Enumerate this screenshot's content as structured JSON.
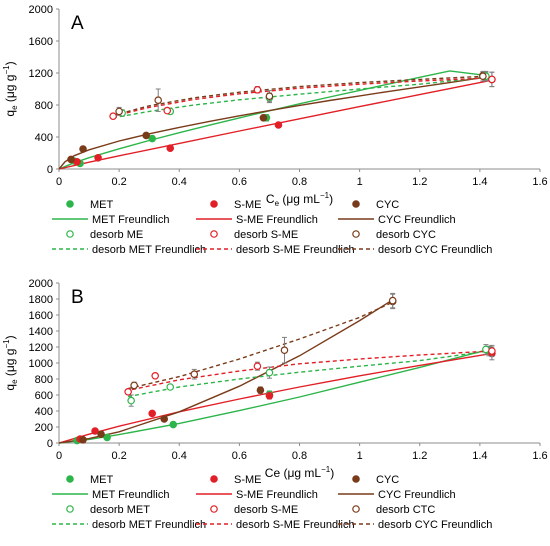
{
  "chart_data": [
    {
      "type": "scatter",
      "panel_label": "A",
      "xlabel": "C",
      "xlabel_sub": "e",
      "xlabel_units": " (μg mL",
      "xlabel_sup": "−1",
      "xlabel_end": ")",
      "ylabel": "q",
      "ylabel_sub": "e",
      "ylabel_units": " (μg g",
      "ylabel_sup": "−1",
      "ylabel_end": ")",
      "xlim": [
        0,
        1.6
      ],
      "ylim": [
        0,
        2000
      ],
      "xticks": [
        "0",
        "0.2",
        "0.4",
        "0.6",
        "0.8",
        "1",
        "1.2",
        "1.4",
        "1.6"
      ],
      "yticks": [
        "0",
        "400",
        "800",
        "1200",
        "1600",
        "2000"
      ],
      "grid": false,
      "legend_position": "below",
      "series": [
        {
          "name": "MET",
          "kind": "points",
          "color": "#2db54a",
          "filled": true,
          "x": [
            0.05,
            0.07,
            0.31,
            0.69,
            1.42
          ],
          "y": [
            100,
            70,
            380,
            640,
            1160
          ],
          "err": [
            0,
            0,
            30,
            40,
            60
          ]
        },
        {
          "name": "S-ME",
          "kind": "points",
          "color": "#e21f26",
          "filled": true,
          "x": [
            0.06,
            0.13,
            0.37,
            0.73,
            1.44
          ],
          "y": [
            90,
            140,
            260,
            550,
            1120
          ],
          "err": [
            0,
            0,
            0,
            0,
            90
          ]
        },
        {
          "name": "CYC",
          "kind": "points",
          "color": "#7a3b1a",
          "filled": true,
          "x": [
            0.04,
            0.08,
            0.29,
            0.68,
            1.41
          ],
          "y": [
            120,
            250,
            420,
            640,
            1170
          ],
          "err": [
            0,
            0,
            0,
            0,
            0
          ]
        },
        {
          "name": "MET Freundlich",
          "kind": "line",
          "color": "#2db54a",
          "dashed": false,
          "x": [
            0,
            0.05,
            0.1,
            0.2,
            0.3,
            0.4,
            0.5,
            0.6,
            0.7,
            0.8,
            0.9,
            1.0,
            1.1,
            1.2,
            1.3,
            1.43
          ],
          "y": [
            0,
            78,
            141,
            252,
            356,
            454,
            548,
            639,
            728,
            815,
            900,
            983,
            1065,
            1146,
            1226,
            1165
          ]
        },
        {
          "name": "S-ME Freundlich",
          "kind": "line",
          "color": "#e21f26",
          "dashed": false,
          "x": [
            0,
            0.1,
            0.2,
            0.4,
            0.6,
            0.8,
            1.0,
            1.2,
            1.44
          ],
          "y": [
            0,
            85,
            165,
            320,
            475,
            628,
            780,
            930,
            1110
          ]
        },
        {
          "name": "CYC Freundlich",
          "kind": "line",
          "color": "#7a3b1a",
          "dashed": false,
          "x": [
            0,
            0.02,
            0.05,
            0.1,
            0.2,
            0.3,
            0.4,
            0.5,
            0.6,
            0.7,
            0.8,
            0.9,
            1.0,
            1.1,
            1.2,
            1.3,
            1.42
          ],
          "y": [
            0,
            90,
            165,
            240,
            350,
            440,
            520,
            595,
            665,
            730,
            795,
            856,
            914,
            971,
            1026,
            1080,
            1150
          ]
        },
        {
          "name": "desorb ME",
          "kind": "points",
          "color": "#2db54a",
          "filled": false,
          "x": [
            0.21,
            0.37,
            0.7,
            1.42
          ],
          "y": [
            700,
            720,
            890,
            1160
          ],
          "err": [
            40,
            30,
            60,
            50
          ]
        },
        {
          "name": "desorb S-ME",
          "kind": "points",
          "color": "#e21f26",
          "filled": false,
          "x": [
            0.18,
            0.36,
            0.66,
            1.44
          ],
          "y": [
            660,
            730,
            990,
            1120
          ],
          "err": [
            0,
            0,
            40,
            90
          ]
        },
        {
          "name": "desorb CYC",
          "kind": "points",
          "color": "#7a3b1a",
          "filled": false,
          "x": [
            0.2,
            0.33,
            0.7,
            1.41
          ],
          "y": [
            720,
            860,
            910,
            1160
          ],
          "err": [
            50,
            140,
            70,
            60
          ]
        },
        {
          "name": "desorb MET Freundlich",
          "kind": "line",
          "color": "#2db54a",
          "dashed": true,
          "x": [
            0.18,
            0.3,
            0.45,
            0.6,
            0.8,
            1.0,
            1.2,
            1.43
          ],
          "y": [
            640,
            720,
            800,
            865,
            935,
            1000,
            1060,
            1150
          ]
        },
        {
          "name": "desorb S-ME Freundlich",
          "kind": "line",
          "color": "#e21f26",
          "dashed": true,
          "x": [
            0.18,
            0.3,
            0.45,
            0.6,
            0.8,
            1.0,
            1.2,
            1.44
          ],
          "y": [
            660,
            770,
            870,
            940,
            1010,
            1060,
            1100,
            1140
          ]
        },
        {
          "name": "desorb CYC Freundlich",
          "kind": "line",
          "color": "#7a3b1a",
          "dashed": true,
          "x": [
            0.18,
            0.3,
            0.45,
            0.6,
            0.8,
            1.0,
            1.2,
            1.42
          ],
          "y": [
            670,
            790,
            890,
            960,
            1030,
            1080,
            1120,
            1160
          ]
        }
      ]
    },
    {
      "type": "scatter",
      "panel_label": "B",
      "xlabel": "Ce (μg mL",
      "xlabel_sub": "",
      "xlabel_units": "",
      "xlabel_sup": "−1",
      "xlabel_end": ")",
      "ylabel": "q",
      "ylabel_sub": "e",
      "ylabel_units": " (μg g",
      "ylabel_sup": "−1",
      "ylabel_end": ")",
      "xlim": [
        0,
        1.6
      ],
      "ylim": [
        0,
        2000
      ],
      "xticks": [
        "0",
        "0.2",
        "0.4",
        "0.6",
        "0.8",
        "1",
        "1.2",
        "1.4",
        "1.6"
      ],
      "yticks": [
        "0",
        "200",
        "400",
        "600",
        "800",
        "1000",
        "1200",
        "1400",
        "1600",
        "1800",
        "2000"
      ],
      "grid": false,
      "legend_position": "below",
      "series": [
        {
          "name": "MET",
          "kind": "points",
          "color": "#2db54a",
          "filled": true,
          "x": [
            0.06,
            0.16,
            0.38,
            0.7,
            1.43
          ],
          "y": [
            30,
            70,
            230,
            610,
            1150
          ],
          "err": [
            0,
            0,
            0,
            40,
            60
          ]
        },
        {
          "name": "S-ME",
          "kind": "points",
          "color": "#e21f26",
          "filled": true,
          "x": [
            0.07,
            0.12,
            0.31,
            0.7,
            1.44
          ],
          "y": [
            50,
            150,
            370,
            590,
            1120
          ],
          "err": [
            0,
            0,
            0,
            40,
            80
          ]
        },
        {
          "name": "CYC",
          "kind": "points",
          "color": "#7a3b1a",
          "filled": true,
          "x": [
            0.08,
            0.14,
            0.35,
            0.67,
            1.11
          ],
          "y": [
            40,
            110,
            300,
            660,
            1770
          ],
          "err": [
            0,
            0,
            0,
            40,
            90
          ]
        },
        {
          "name": "MET Freundlich",
          "kind": "line",
          "color": "#2db54a",
          "dashed": false,
          "x": [
            0,
            0.1,
            0.2,
            0.4,
            0.6,
            0.8,
            1.0,
            1.2,
            1.43
          ],
          "y": [
            0,
            45,
            105,
            245,
            405,
            575,
            760,
            945,
            1170
          ]
        },
        {
          "name": "S-ME Freundlich",
          "kind": "line",
          "color": "#e21f26",
          "dashed": false,
          "x": [
            0,
            0.1,
            0.2,
            0.4,
            0.6,
            0.8,
            1.0,
            1.2,
            1.44
          ],
          "y": [
            0,
            110,
            210,
            390,
            550,
            700,
            840,
            970,
            1120
          ]
        },
        {
          "name": "CYC Freundlich",
          "kind": "line",
          "color": "#7a3b1a",
          "dashed": false,
          "x": [
            0,
            0.1,
            0.2,
            0.4,
            0.6,
            0.8,
            1.0,
            1.11
          ],
          "y": [
            0,
            55,
            140,
            390,
            710,
            1090,
            1530,
            1790
          ]
        },
        {
          "name": "desorb MET",
          "kind": "points",
          "color": "#2db54a",
          "filled": false,
          "x": [
            0.24,
            0.37,
            0.7,
            1.42
          ],
          "y": [
            530,
            700,
            880,
            1170
          ],
          "err": [
            70,
            0,
            70,
            60
          ]
        },
        {
          "name": "desorb S-ME",
          "kind": "points",
          "color": "#e21f26",
          "filled": false,
          "x": [
            0.23,
            0.32,
            0.66,
            1.44
          ],
          "y": [
            640,
            840,
            960,
            1150
          ],
          "err": [
            0,
            0,
            50,
            70
          ]
        },
        {
          "name": "desorb CTC",
          "kind": "points",
          "color": "#7a3b1a",
          "filled": false,
          "x": [
            0.25,
            0.45,
            0.75,
            1.11
          ],
          "y": [
            720,
            860,
            1160,
            1780
          ],
          "err": [
            40,
            60,
            160,
            90
          ]
        },
        {
          "name": "desorb MET Freundlich",
          "kind": "line",
          "color": "#2db54a",
          "dashed": true,
          "x": [
            0.23,
            0.4,
            0.6,
            0.8,
            1.0,
            1.2,
            1.43
          ],
          "y": [
            580,
            700,
            800,
            885,
            960,
            1030,
            1150
          ]
        },
        {
          "name": "desorb S-ME Freundlich",
          "kind": "line",
          "color": "#e21f26",
          "dashed": true,
          "x": [
            0.22,
            0.4,
            0.6,
            0.8,
            1.0,
            1.2,
            1.44
          ],
          "y": [
            650,
            790,
            900,
            990,
            1050,
            1100,
            1150
          ]
        },
        {
          "name": "desorb CYC Freundlich",
          "kind": "line",
          "color": "#7a3b1a",
          "dashed": true,
          "x": [
            0.23,
            0.4,
            0.6,
            0.8,
            1.0,
            1.11
          ],
          "y": [
            680,
            830,
            1050,
            1300,
            1570,
            1760
          ]
        }
      ]
    }
  ]
}
